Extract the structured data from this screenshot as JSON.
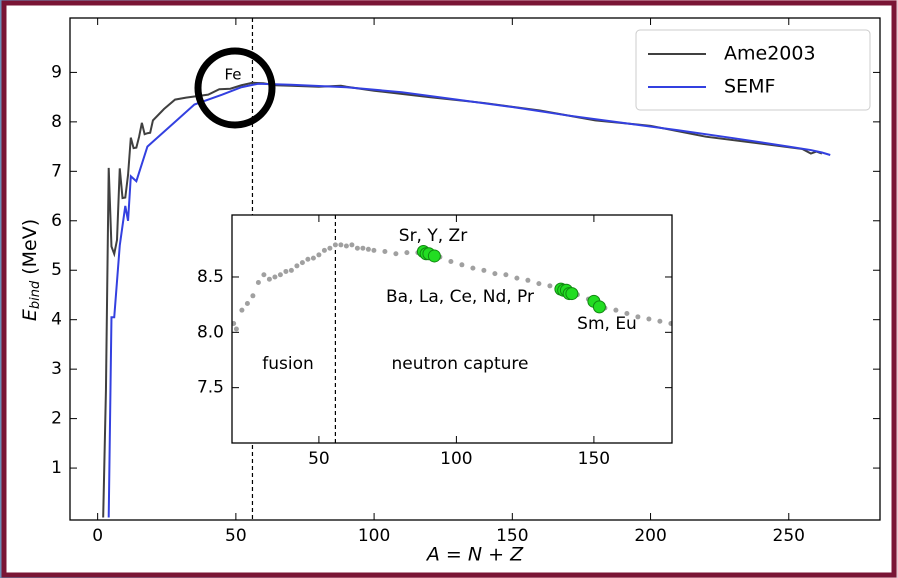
{
  "chart_data": [
    {
      "type": "line",
      "xlabel": "A = N + Z",
      "ylabel": {
        "symbol": "E",
        "subscript": "bind",
        "unit": "(MeV)"
      },
      "annotation": "Fe",
      "xlim": [
        -10,
        283
      ],
      "ylim": [
        -0.05,
        10.1
      ],
      "xticks": [
        0,
        50,
        100,
        150,
        200,
        250
      ],
      "yticks": [
        1,
        2,
        3,
        4,
        5,
        6,
        7,
        8,
        9
      ],
      "vline": 56,
      "legend": "upper right",
      "series": [
        {
          "name": "Ame2003",
          "color": "#404040",
          "x": [
            2,
            3,
            4,
            5,
            6,
            7,
            8,
            9,
            10,
            11,
            12,
            13,
            14,
            15,
            16,
            17,
            18,
            19,
            20,
            24,
            28,
            32,
            36,
            40,
            44,
            48,
            52,
            56,
            60,
            64,
            70,
            80,
            88,
            90,
            100,
            120,
            140,
            160,
            180,
            200,
            220,
            240,
            255,
            258,
            260,
            262
          ],
          "values": [
            0.0,
            2.57,
            7.07,
            5.48,
            5.33,
            5.61,
            7.06,
            6.46,
            6.47,
            6.93,
            7.68,
            7.47,
            7.48,
            7.7,
            7.98,
            7.75,
            7.77,
            7.78,
            8.03,
            8.26,
            8.45,
            8.49,
            8.52,
            8.55,
            8.66,
            8.67,
            8.74,
            8.79,
            8.78,
            8.74,
            8.73,
            8.71,
            8.73,
            8.71,
            8.63,
            8.5,
            8.38,
            8.23,
            8.03,
            7.92,
            7.7,
            7.56,
            7.45,
            7.36,
            7.4,
            7.36
          ]
        },
        {
          "name": "SEMF",
          "color": "#3340e0",
          "x": [
            4,
            5,
            6,
            8,
            10,
            11,
            12,
            14,
            18,
            20,
            28,
            35,
            45,
            52,
            58,
            70,
            90,
            110,
            130,
            150,
            170,
            190,
            210,
            230,
            250,
            258,
            262,
            265
          ],
          "values": [
            0.0,
            4.05,
            4.05,
            5.5,
            6.3,
            6.0,
            6.9,
            6.8,
            7.5,
            7.6,
            8.0,
            8.35,
            8.55,
            8.7,
            8.77,
            8.75,
            8.7,
            8.6,
            8.45,
            8.3,
            8.13,
            7.98,
            7.83,
            7.67,
            7.5,
            7.43,
            7.38,
            7.33
          ]
        }
      ]
    },
    {
      "type": "scatter",
      "xlim": [
        18.4,
        178.4
      ],
      "ylim": [
        7.0,
        9.06
      ],
      "xticks": [
        50,
        100,
        150
      ],
      "yticks": [
        7.5,
        {
          "value": 8,
          "label": "8.0"
        },
        8.5
      ],
      "vline": 56,
      "annotations": [
        "Sr, Y, Zr",
        "Ba, La, Ce, Nd, Pr",
        "Sm, Eu",
        "fusion",
        "neutron capture"
      ],
      "series": [
        {
          "color": "#a0a0a0",
          "x": [
            19,
            20,
            22,
            24,
            26,
            28,
            30,
            32,
            34,
            36,
            38,
            40,
            42,
            44,
            46,
            48,
            50,
            52,
            54,
            56,
            58,
            60,
            62,
            64,
            66,
            68,
            70,
            74,
            78,
            82,
            86,
            94,
            98,
            102,
            106,
            110,
            114,
            118,
            122,
            126,
            130,
            134,
            144,
            148,
            154,
            158,
            162,
            166,
            170,
            174,
            178
          ],
          "values": [
            8.08,
            8.03,
            8.2,
            8.26,
            8.33,
            8.45,
            8.52,
            8.48,
            8.5,
            8.52,
            8.55,
            8.56,
            8.6,
            8.63,
            8.66,
            8.67,
            8.7,
            8.74,
            8.76,
            8.79,
            8.79,
            8.78,
            8.79,
            8.76,
            8.76,
            8.75,
            8.74,
            8.73,
            8.71,
            8.72,
            8.72,
            8.68,
            8.64,
            8.61,
            8.58,
            8.56,
            8.53,
            8.52,
            8.49,
            8.47,
            8.44,
            8.42,
            8.34,
            8.3,
            8.22,
            8.2,
            8.17,
            8.14,
            8.12,
            8.1,
            8.08
          ]
        },
        {
          "color": "#22dd22",
          "x": [
            88,
            89,
            90,
            92,
            138,
            139,
            140,
            141,
            142,
            150,
            152
          ],
          "values": [
            8.73,
            8.71,
            8.71,
            8.69,
            8.39,
            8.38,
            8.38,
            8.35,
            8.35,
            8.28,
            8.23
          ]
        }
      ]
    }
  ]
}
